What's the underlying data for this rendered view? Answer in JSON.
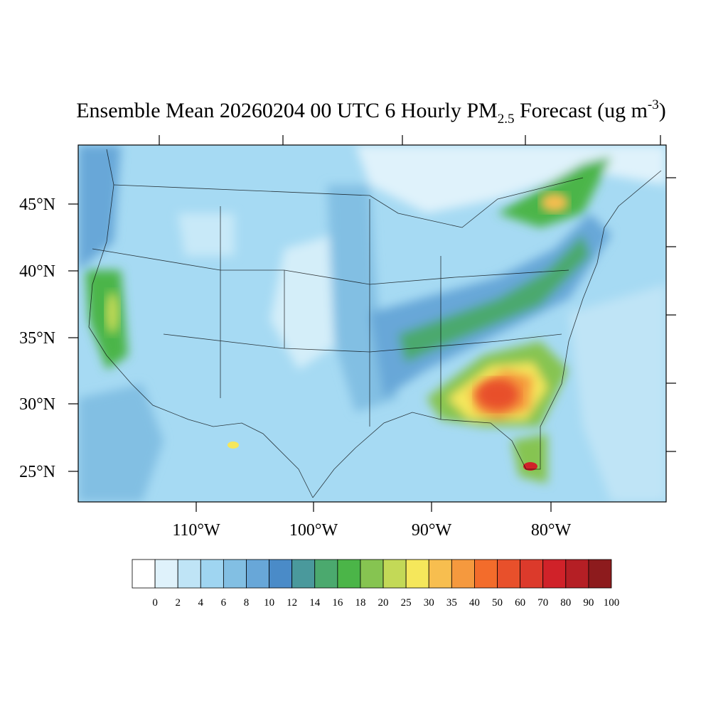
{
  "title": {
    "main": "Ensemble Mean 20260204 00 UTC 6 Hourly PM",
    "subscript": "2.5",
    "after": " Forecast (ug m",
    "superscript": "-3",
    "close": ")"
  },
  "latitude_labels": [
    "45°N",
    "40°N",
    "35°N",
    "30°N",
    "25°N"
  ],
  "longitude_labels": [
    "110°W",
    "100°W",
    "90°W",
    "80°W"
  ],
  "colorbar": {
    "levels": [
      0,
      2,
      4,
      6,
      8,
      10,
      12,
      14,
      16,
      18,
      20,
      25,
      30,
      35,
      40,
      50,
      60,
      70,
      80,
      90,
      100
    ],
    "colors": [
      "#ffffff",
      "#dff2fb",
      "#bfe4f6",
      "#9fd5f1",
      "#82bfe3",
      "#68a7d8",
      "#4a8bc8",
      "#4a999c",
      "#4ba96e",
      "#4bb548",
      "#86c451",
      "#c3d957",
      "#f5e75b",
      "#f7be4f",
      "#f5993e",
      "#f36c2b",
      "#e8502b",
      "#dc3a2b",
      "#d02229",
      "#b51f25",
      "#8d1b1d"
    ]
  }
}
